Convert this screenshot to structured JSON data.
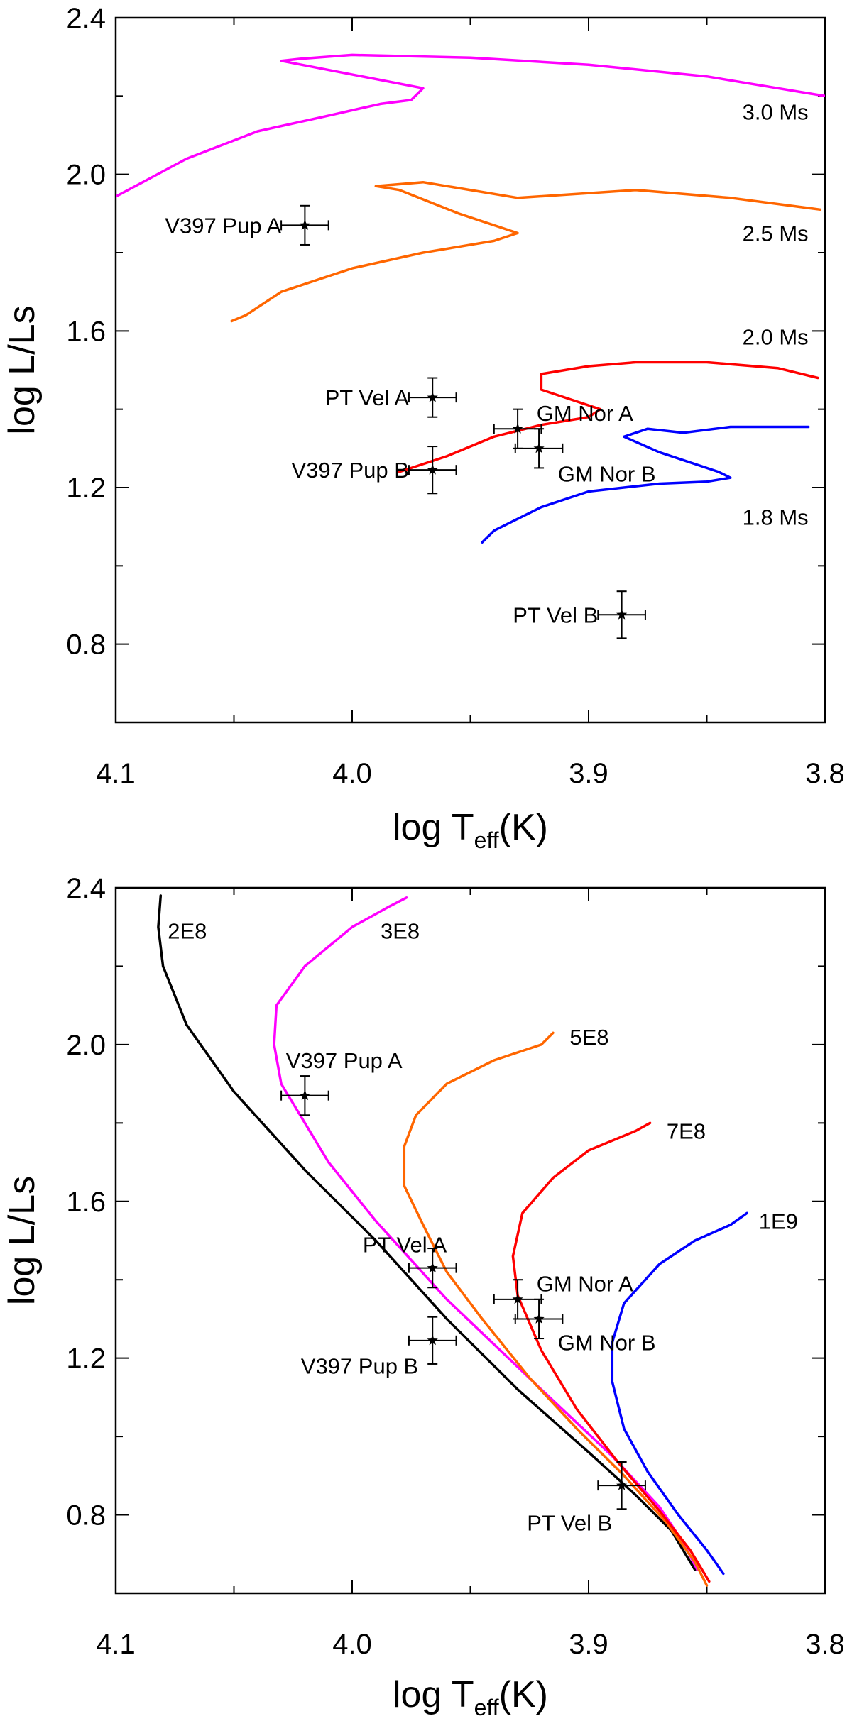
{
  "chart_data": [
    {
      "id": "top",
      "type": "line",
      "title": "",
      "xlabel": "log T",
      "xlabel_sub": "eff",
      "xlabel_unit": "(K)",
      "ylabel": "log L/Ls",
      "xlim": [
        4.1,
        3.8
      ],
      "ylim": [
        0.6,
        2.4
      ],
      "xticks": [
        4.1,
        4.0,
        3.9,
        3.8
      ],
      "xtick_labels": [
        "4.1",
        "4.0",
        "3.9",
        "3.8"
      ],
      "yticks": [
        0.8,
        1.2,
        1.6,
        2.0,
        2.4
      ],
      "ytick_labels": [
        "0.8",
        "1.2",
        "1.6",
        "2.0",
        "2.4"
      ],
      "series": [
        {
          "name": "3.0 Ms",
          "color": "#ff00ff",
          "x": [
            4.101,
            4.07,
            4.04,
            4.01,
            3.988,
            3.975,
            3.97,
            4.03,
            4.022,
            4.0,
            3.95,
            3.9,
            3.85,
            3.8
          ],
          "y": [
            1.94,
            2.04,
            2.11,
            2.15,
            2.18,
            2.19,
            2.22,
            2.29,
            2.295,
            2.305,
            2.298,
            2.28,
            2.25,
            2.2
          ]
        },
        {
          "name": "2.5 Ms",
          "color": "#ff6600",
          "x": [
            4.051,
            4.045,
            4.03,
            4.0,
            3.97,
            3.94,
            3.93,
            3.955,
            3.98,
            3.99,
            3.97,
            3.93,
            3.88,
            3.84,
            3.802
          ],
          "y": [
            1.625,
            1.64,
            1.7,
            1.76,
            1.8,
            1.83,
            1.85,
            1.9,
            1.96,
            1.97,
            1.98,
            1.94,
            1.96,
            1.94,
            1.91
          ]
        },
        {
          "name": "2.0 Ms",
          "color": "#ff0000",
          "x": [
            3.98,
            3.96,
            3.94,
            3.92,
            3.905,
            3.9,
            3.895,
            3.91,
            3.92,
            3.92,
            3.9,
            3.88,
            3.85,
            3.82,
            3.803
          ],
          "y": [
            1.24,
            1.28,
            1.33,
            1.36,
            1.375,
            1.38,
            1.4,
            1.43,
            1.45,
            1.49,
            1.51,
            1.52,
            1.52,
            1.505,
            1.48
          ]
        },
        {
          "name": "1.8 Ms",
          "color": "#0000ff",
          "x": [
            3.945,
            3.94,
            3.92,
            3.9,
            3.87,
            3.85,
            3.84,
            3.845,
            3.87,
            3.885,
            3.875,
            3.86,
            3.84,
            3.807
          ],
          "y": [
            1.06,
            1.09,
            1.15,
            1.19,
            1.21,
            1.215,
            1.225,
            1.24,
            1.29,
            1.33,
            1.35,
            1.34,
            1.355,
            1.355
          ]
        }
      ],
      "curve_labels": [
        {
          "text": "3.0 Ms",
          "x": 3.807,
          "y": 2.16
        },
        {
          "text": "2.5 Ms",
          "x": 3.807,
          "y": 1.85
        },
        {
          "text": "2.0 Ms",
          "x": 3.807,
          "y": 1.585
        },
        {
          "text": "1.8 Ms",
          "x": 3.807,
          "y": 1.125
        }
      ],
      "points": [
        {
          "label": "V397 Pup A",
          "x": 4.02,
          "y": 1.87,
          "xerr": 0.01,
          "yerr": 0.05,
          "lx": 4.03,
          "ly": 1.87,
          "anchor": "end"
        },
        {
          "label": "PT Vel A",
          "x": 3.966,
          "y": 1.43,
          "xerr": 0.01,
          "yerr": 0.05,
          "lx": 3.976,
          "ly": 1.43,
          "anchor": "end"
        },
        {
          "label": "V397 Pup B",
          "x": 3.966,
          "y": 1.245,
          "xerr": 0.01,
          "yerr": 0.06,
          "lx": 3.976,
          "ly": 1.245,
          "anchor": "end"
        },
        {
          "label": "GM Nor A",
          "x": 3.93,
          "y": 1.35,
          "xerr": 0.01,
          "yerr": 0.05,
          "lx": 3.922,
          "ly": 1.39,
          "anchor": "start"
        },
        {
          "label": "GM Nor B",
          "x": 3.921,
          "y": 1.3,
          "xerr": 0.01,
          "yerr": 0.05,
          "lx": 3.913,
          "ly": 1.235,
          "anchor": "start"
        },
        {
          "label": "PT Vel B",
          "x": 3.886,
          "y": 0.875,
          "xerr": 0.01,
          "yerr": 0.06,
          "lx": 3.896,
          "ly": 0.875,
          "anchor": "end"
        }
      ]
    },
    {
      "id": "bottom",
      "type": "line",
      "title": "",
      "xlabel": "log T",
      "xlabel_sub": "eff",
      "xlabel_unit": "(K)",
      "ylabel": "log L/Ls",
      "xlim": [
        4.1,
        3.8
      ],
      "ylim": [
        0.6,
        2.4
      ],
      "xticks": [
        4.1,
        4.0,
        3.9,
        3.8
      ],
      "xtick_labels": [
        "4.1",
        "4.0",
        "3.9",
        "3.8"
      ],
      "yticks": [
        0.8,
        1.2,
        1.6,
        2.0,
        2.4
      ],
      "ytick_labels": [
        "0.8",
        "1.2",
        "1.6",
        "2.0",
        "2.4"
      ],
      "series": [
        {
          "name": "2E8",
          "color": "#000000",
          "x": [
            4.081,
            4.082,
            4.08,
            4.07,
            4.05,
            4.02,
            3.99,
            3.96,
            3.93,
            3.9,
            3.88,
            3.865,
            3.855
          ],
          "y": [
            2.38,
            2.3,
            2.2,
            2.05,
            1.88,
            1.68,
            1.5,
            1.3,
            1.12,
            0.96,
            0.85,
            0.76,
            0.66
          ]
        },
        {
          "name": "3E8",
          "color": "#ff00ff",
          "x": [
            3.977,
            3.985,
            4.0,
            4.02,
            4.032,
            4.033,
            4.03,
            4.02,
            4.01,
            3.99,
            3.96,
            3.92,
            3.89,
            3.87,
            3.86,
            3.854
          ],
          "y": [
            2.375,
            2.35,
            2.3,
            2.2,
            2.1,
            2.0,
            1.9,
            1.8,
            1.7,
            1.55,
            1.35,
            1.12,
            0.95,
            0.82,
            0.73,
            0.66
          ]
        },
        {
          "name": "5E8",
          "color": "#ff6600",
          "x": [
            3.915,
            3.92,
            3.94,
            3.96,
            3.973,
            3.978,
            3.978,
            3.97,
            3.96,
            3.945,
            3.925,
            3.905,
            3.885,
            3.867,
            3.855,
            3.85
          ],
          "y": [
            2.03,
            2.0,
            1.96,
            1.9,
            1.82,
            1.74,
            1.64,
            1.54,
            1.42,
            1.3,
            1.15,
            1.02,
            0.9,
            0.78,
            0.68,
            0.62
          ]
        },
        {
          "name": "7E8",
          "color": "#ff0000",
          "x": [
            3.874,
            3.88,
            3.9,
            3.915,
            3.928,
            3.932,
            3.93,
            3.92,
            3.905,
            3.887,
            3.87,
            3.857,
            3.849
          ],
          "y": [
            1.8,
            1.78,
            1.73,
            1.66,
            1.57,
            1.46,
            1.36,
            1.22,
            1.07,
            0.93,
            0.81,
            0.71,
            0.63
          ]
        },
        {
          "name": "1E9",
          "color": "#0000ff",
          "x": [
            3.833,
            3.84,
            3.855,
            3.87,
            3.885,
            3.89,
            3.89,
            3.885,
            3.875,
            3.862,
            3.85,
            3.843
          ],
          "y": [
            1.57,
            1.54,
            1.5,
            1.44,
            1.34,
            1.24,
            1.14,
            1.02,
            0.91,
            0.8,
            0.71,
            0.65
          ]
        }
      ],
      "curve_labels": [
        {
          "text": "2E8",
          "x": 4.078,
          "y": 2.29
        },
        {
          "text": "3E8",
          "x": 3.988,
          "y": 2.29
        },
        {
          "text": "5E8",
          "x": 3.908,
          "y": 2.02
        },
        {
          "text": "7E8",
          "x": 3.867,
          "y": 1.78
        },
        {
          "text": "1E9",
          "x": 3.828,
          "y": 1.55
        }
      ],
      "points": [
        {
          "label": "V397 Pup A",
          "x": 4.02,
          "y": 1.87,
          "xerr": 0.01,
          "yerr": 0.05,
          "lx": 4.028,
          "ly": 1.96,
          "anchor": "start"
        },
        {
          "label": "PT Vel A",
          "x": 3.966,
          "y": 1.43,
          "xerr": 0.01,
          "yerr": 0.05,
          "lx": 3.96,
          "ly": 1.49,
          "anchor": "end"
        },
        {
          "label": "V397 Pup B",
          "x": 3.966,
          "y": 1.245,
          "xerr": 0.01,
          "yerr": 0.06,
          "lx": 3.972,
          "ly": 1.18,
          "anchor": "end"
        },
        {
          "label": "GM Nor A",
          "x": 3.93,
          "y": 1.35,
          "xerr": 0.01,
          "yerr": 0.05,
          "lx": 3.922,
          "ly": 1.39,
          "anchor": "start"
        },
        {
          "label": "GM Nor B",
          "x": 3.921,
          "y": 1.3,
          "xerr": 0.01,
          "yerr": 0.05,
          "lx": 3.913,
          "ly": 1.24,
          "anchor": "start"
        },
        {
          "label": "PT Vel B",
          "x": 3.886,
          "y": 0.875,
          "xerr": 0.01,
          "yerr": 0.06,
          "lx": 3.89,
          "ly": 0.78,
          "anchor": "end"
        }
      ]
    }
  ]
}
